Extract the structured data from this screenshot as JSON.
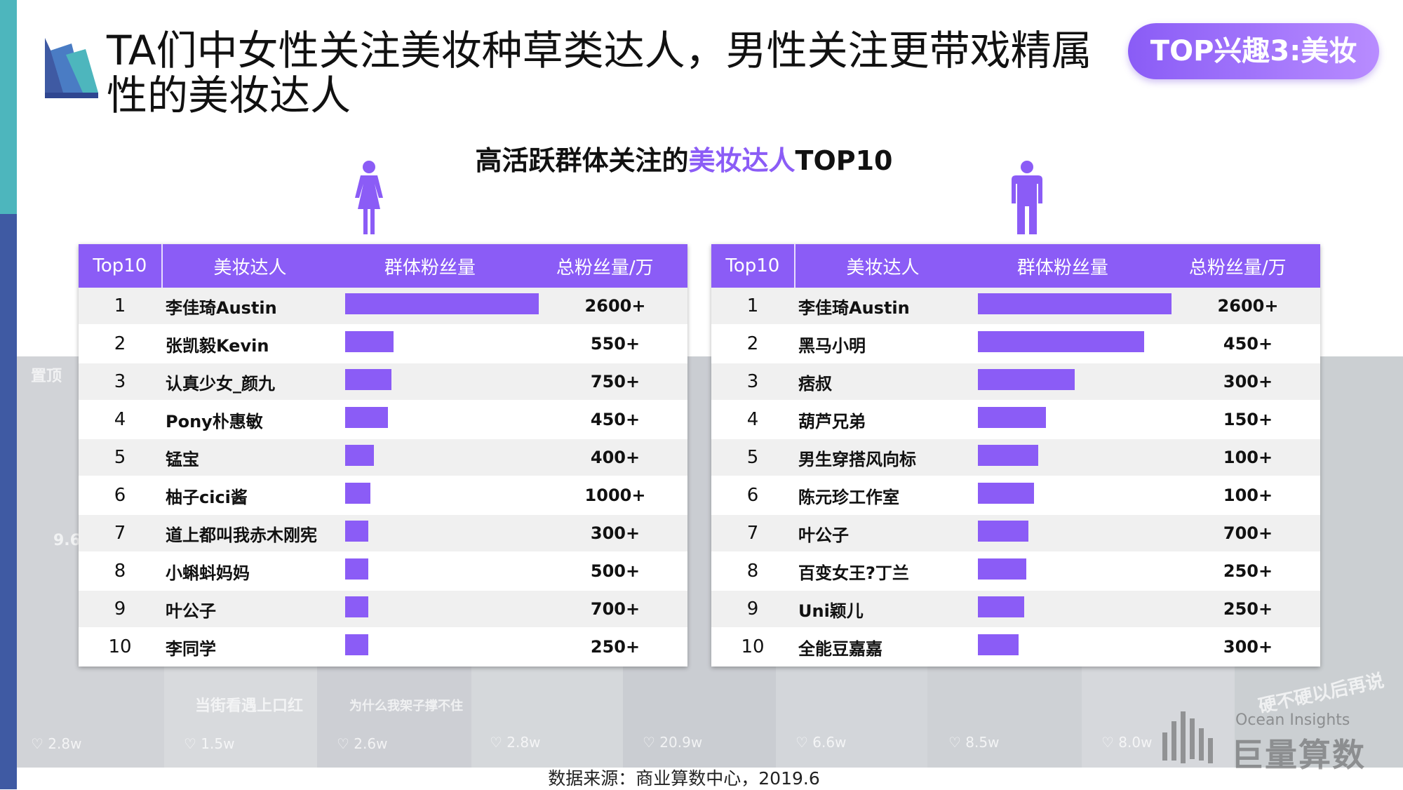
{
  "slide": {
    "title": "TA们中女性关注美妆种草类达人，男性关注更带戏精属性的美妆达人",
    "badge": "TOP兴趣3:美妆",
    "chart_title_prefix": "高活跃群体关注的",
    "chart_title_highlight": "美妆达人",
    "chart_title_suffix": "TOP10",
    "source": "数据来源：商业算数中心，2019.6",
    "brand_en": "Ocean Insights",
    "brand_cn": "巨量算数",
    "accent_color": "#8b5cf6"
  },
  "background": {
    "photo_counts": [
      "2.8w",
      "1.5w",
      "2.6w",
      "2.8w",
      "20.9w",
      "6.6w",
      "8.5w",
      "8.0w"
    ],
    "overlay_texts": [
      "置顶",
      "9.6",
      "当街看遇上口红",
      "为什么我架子撑不住",
      "硬不硬以后再说"
    ]
  },
  "tables": {
    "headers": [
      "Top10",
      "美妆达人",
      "群体粉丝量",
      "总粉丝量/万"
    ],
    "female": {
      "icon": "female-icon",
      "rows": [
        {
          "rank": "1",
          "name": "李佳琦Austin",
          "group_fans": 1.0,
          "total": "2600+"
        },
        {
          "rank": "2",
          "name": "张凯毅Kevin",
          "group_fans": 0.25,
          "total": "550+"
        },
        {
          "rank": "3",
          "name": "认真少女_颜九",
          "group_fans": 0.24,
          "total": "750+"
        },
        {
          "rank": "4",
          "name": "Pony朴惠敏",
          "group_fans": 0.22,
          "total": "450+"
        },
        {
          "rank": "5",
          "name": "锰宝",
          "group_fans": 0.15,
          "total": "400+"
        },
        {
          "rank": "6",
          "name": "柚子cici酱",
          "group_fans": 0.13,
          "total": "1000+"
        },
        {
          "rank": "7",
          "name": "道上都叫我赤木刚宪",
          "group_fans": 0.12,
          "total": "300+"
        },
        {
          "rank": "8",
          "name": "小蝌蚪妈妈",
          "group_fans": 0.12,
          "total": "500+"
        },
        {
          "rank": "9",
          "name": "叶公子",
          "group_fans": 0.12,
          "total": "700+"
        },
        {
          "rank": "10",
          "name": "李同学",
          "group_fans": 0.12,
          "total": "250+"
        }
      ]
    },
    "male": {
      "icon": "male-icon",
      "rows": [
        {
          "rank": "1",
          "name": "李佳琦Austin",
          "group_fans": 1.0,
          "total": "2600+"
        },
        {
          "rank": "2",
          "name": "黑马小明",
          "group_fans": 0.86,
          "total": "450+"
        },
        {
          "rank": "3",
          "name": "痞叔",
          "group_fans": 0.5,
          "total": "300+"
        },
        {
          "rank": "4",
          "name": "葫芦兄弟",
          "group_fans": 0.35,
          "total": "150+"
        },
        {
          "rank": "5",
          "name": "男生穿搭风向标",
          "group_fans": 0.31,
          "total": "100+"
        },
        {
          "rank": "6",
          "name": "陈元珍工作室",
          "group_fans": 0.29,
          "total": "100+"
        },
        {
          "rank": "7",
          "name": "叶公子",
          "group_fans": 0.26,
          "total": "700+"
        },
        {
          "rank": "8",
          "name": "百变女王?丁兰",
          "group_fans": 0.25,
          "total": "250+"
        },
        {
          "rank": "9",
          "name": "Uni颖儿",
          "group_fans": 0.24,
          "total": "250+"
        },
        {
          "rank": "10",
          "name": "全能豆嘉嘉",
          "group_fans": 0.21,
          "total": "300+"
        }
      ]
    }
  }
}
